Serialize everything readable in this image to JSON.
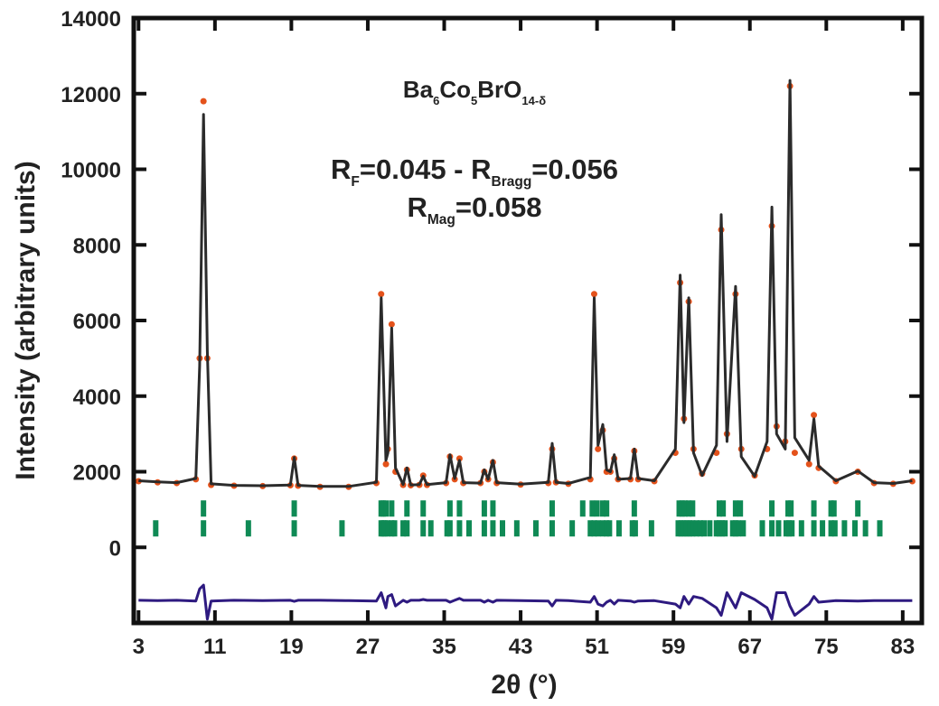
{
  "chart_data": {
    "type": "line",
    "annotations": [
      {
        "parts": [
          "Ba",
          "6",
          "Co",
          "5",
          "BrO",
          "14-δ"
        ]
      },
      {
        "parts": [
          "R",
          "F",
          "=0.045 - R",
          "Bragg",
          "=0.056"
        ]
      },
      {
        "parts": [
          "R",
          "Mag",
          "=0.058"
        ]
      }
    ],
    "x_label": "2θ (°)",
    "y_label": "Intensity (arbitrary units)",
    "xlim": [
      2.5,
      85
    ],
    "ylim": [
      -2000,
      14000
    ],
    "xticks": [
      3,
      11,
      19,
      27,
      35,
      43,
      51,
      59,
      67,
      75,
      83
    ],
    "yticks": [
      0,
      2000,
      4000,
      6000,
      8000,
      10000,
      12000,
      14000
    ],
    "x": [
      3,
      5,
      7,
      9,
      9.4,
      9.8,
      10.2,
      10.6,
      13,
      16,
      18.9,
      19.3,
      19.7,
      22,
      25,
      27.9,
      28.4,
      28.9,
      29.1,
      29.5,
      29.9,
      30.7,
      31.1,
      31.5,
      32.4,
      32.8,
      33.2,
      35.2,
      35.6,
      36.1,
      36.6,
      37.0,
      38.8,
      39.2,
      39.6,
      40.1,
      40.5,
      43,
      45.9,
      46.3,
      46.7,
      48,
      50.3,
      50.7,
      51.1,
      51.6,
      52.0,
      52.4,
      52.8,
      53.2,
      54.5,
      54.9,
      55.3,
      57,
      59.2,
      59.7,
      60.1,
      60.6,
      61.1,
      62,
      63.5,
      64.0,
      64.6,
      65.5,
      66.1,
      67.5,
      68.8,
      69.3,
      69.8,
      70.7,
      71.2,
      71.7,
      73.2,
      73.7,
      74.2,
      76,
      78.3,
      80,
      82,
      84
    ],
    "series": [
      {
        "color": "#e4521b",
        "style": "markers",
        "values": [
          1750,
          1720,
          1700,
          1800,
          5000,
          11800,
          5000,
          1650,
          1630,
          1620,
          1640,
          2350,
          1630,
          1600,
          1600,
          1700,
          6700,
          2200,
          2600,
          5900,
          2000,
          1650,
          2050,
          1640,
          1650,
          1900,
          1650,
          1700,
          2400,
          1800,
          2350,
          1700,
          1700,
          2000,
          1800,
          2250,
          1700,
          1660,
          1700,
          2600,
          1720,
          1680,
          1800,
          6700,
          2600,
          3100,
          2000,
          2000,
          2350,
          1800,
          1800,
          2550,
          1800,
          1750,
          2500,
          7000,
          3400,
          6500,
          2600,
          1950,
          2500,
          8400,
          3000,
          6700,
          2600,
          1900,
          2600,
          8500,
          3200,
          2800,
          12200,
          2500,
          2200,
          3500,
          2100,
          1750,
          2000,
          1700,
          1680,
          1750
        ]
      },
      {
        "color": "#2b2b2b",
        "style": "line",
        "values": [
          1760,
          1730,
          1710,
          1820,
          4800,
          11450,
          5200,
          1680,
          1640,
          1630,
          1650,
          2380,
          1640,
          1610,
          1610,
          1720,
          6600,
          2300,
          2500,
          5800,
          2100,
          1660,
          2100,
          1650,
          1660,
          1880,
          1660,
          1710,
          2450,
          1820,
          2300,
          1710,
          1700,
          2050,
          1800,
          2300,
          1710,
          1670,
          1720,
          2750,
          1720,
          1690,
          1850,
          6600,
          2700,
          3250,
          2050,
          2000,
          2450,
          1800,
          1820,
          2600,
          1820,
          1760,
          2600,
          7200,
          3300,
          6600,
          2500,
          1900,
          2700,
          8800,
          2800,
          6900,
          2400,
          1880,
          2800,
          9000,
          3000,
          2600,
          12350,
          2900,
          2300,
          3400,
          2150,
          1760,
          2020,
          1710,
          1690,
          1760
        ]
      },
      {
        "color": "#2e1a80",
        "style": "line",
        "values": [
          -1400,
          -1410,
          -1400,
          -1420,
          -1100,
          -1000,
          -1900,
          -1420,
          -1400,
          -1410,
          -1400,
          -1430,
          -1400,
          -1400,
          -1410,
          -1420,
          -1200,
          -1600,
          -1300,
          -1250,
          -1550,
          -1400,
          -1450,
          -1400,
          -1400,
          -1380,
          -1400,
          -1400,
          -1450,
          -1400,
          -1350,
          -1400,
          -1400,
          -1450,
          -1400,
          -1450,
          -1400,
          -1410,
          -1420,
          -1550,
          -1400,
          -1410,
          -1450,
          -1300,
          -1500,
          -1550,
          -1450,
          -1400,
          -1500,
          -1400,
          -1420,
          -1450,
          -1420,
          -1410,
          -1500,
          -1600,
          -1300,
          -1500,
          -1300,
          -1350,
          -1600,
          -1800,
          -1200,
          -1600,
          -1200,
          -1380,
          -1600,
          -1900,
          -1200,
          -1200,
          -1550,
          -1800,
          -1500,
          -1300,
          -1450,
          -1410,
          -1420,
          -1410,
          -1410,
          -1410
        ]
      }
    ],
    "bragg_color": "#0f8a55",
    "bragg_reflections": [
      {
        "positions": [
          9.8,
          19.3,
          28.4,
          28.6,
          28.9,
          29.5,
          31.1,
          32.8,
          35.6,
          36.6,
          39.2,
          40.1,
          46.3,
          49.5,
          50.5,
          51.0,
          51.6,
          52.0,
          54.9,
          59.6,
          59.9,
          60.2,
          60.6,
          61.0,
          63.8,
          64.2,
          65.5,
          66.0,
          69.3,
          71.0,
          71.3,
          73.7,
          75.5,
          75.8,
          78.3
        ]
      },
      {
        "positions": [
          4.8,
          9.8,
          14.5,
          19.3,
          24.3,
          28.4,
          28.6,
          28.8,
          29.1,
          29.5,
          29.8,
          30.7,
          31.1,
          32.8,
          33.6,
          35.3,
          35.6,
          36.6,
          37.6,
          39.2,
          40.1,
          41.1,
          42.6,
          44.6,
          46.3,
          48.4,
          50.3,
          50.7,
          51.1,
          51.6,
          52.0,
          52.3,
          53.3,
          54.7,
          55.0,
          56.7,
          59.5,
          59.8,
          60.1,
          60.4,
          60.7,
          61.0,
          61.4,
          61.8,
          62.2,
          62.8,
          63.5,
          63.8,
          64.1,
          64.4,
          65.2,
          65.5,
          65.8,
          66.3,
          68.3,
          69.3,
          70.0,
          70.8,
          71.1,
          71.4,
          72.4,
          73.7,
          74.6,
          75.5,
          75.9,
          76.9,
          78.0,
          79.1,
          80.6
        ]
      }
    ]
  }
}
